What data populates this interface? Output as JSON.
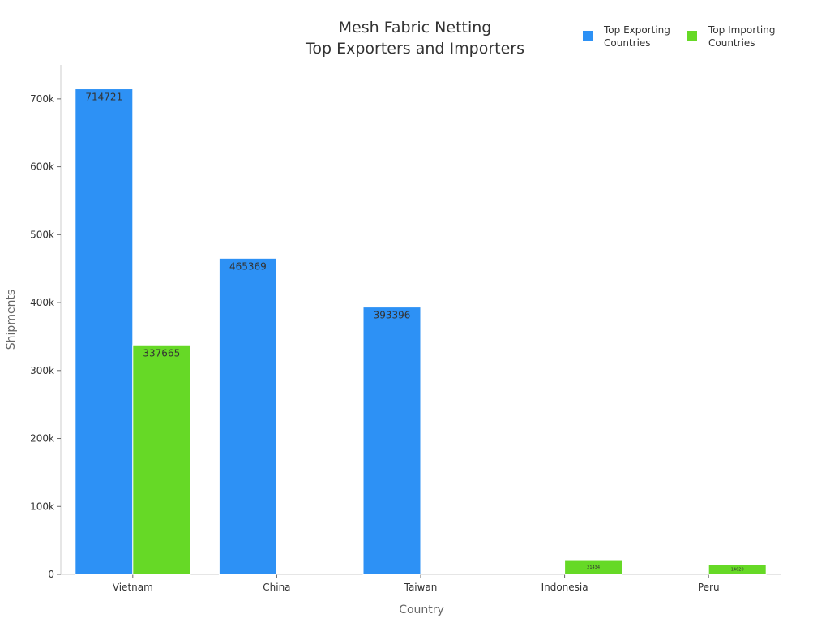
{
  "chart_data": {
    "type": "bar",
    "title": [
      "Mesh Fabric Netting",
      "Top Exporters and Importers"
    ],
    "xlabel": "Country",
    "ylabel": "Shipments",
    "categories": [
      "Vietnam",
      "China",
      "Taiwan",
      "Indonesia",
      "Peru"
    ],
    "series": [
      {
        "name": "Top Exporting Countries",
        "legend_lines": [
          "Top Exporting",
          "Countries"
        ],
        "color": "#2d91f5",
        "values": [
          714721,
          465369,
          393396,
          null,
          null
        ],
        "labels": [
          "714721",
          "465369",
          "393396",
          "",
          ""
        ]
      },
      {
        "name": "Top Importing Countries",
        "legend_lines": [
          "Top Importing",
          "Countries"
        ],
        "color": "#66d926",
        "values": [
          337665,
          null,
          null,
          21434,
          14620
        ],
        "labels": [
          "337665",
          "",
          "",
          "21434",
          "14620"
        ]
      }
    ],
    "ylim": [
      0,
      750000
    ],
    "yticks": [
      0,
      100000,
      200000,
      300000,
      400000,
      500000,
      600000,
      700000
    ],
    "ytick_labels": [
      "0",
      "100k",
      "200k",
      "300k",
      "400k",
      "500k",
      "600k",
      "700k"
    ],
    "grid": false,
    "legend": "top-right"
  }
}
